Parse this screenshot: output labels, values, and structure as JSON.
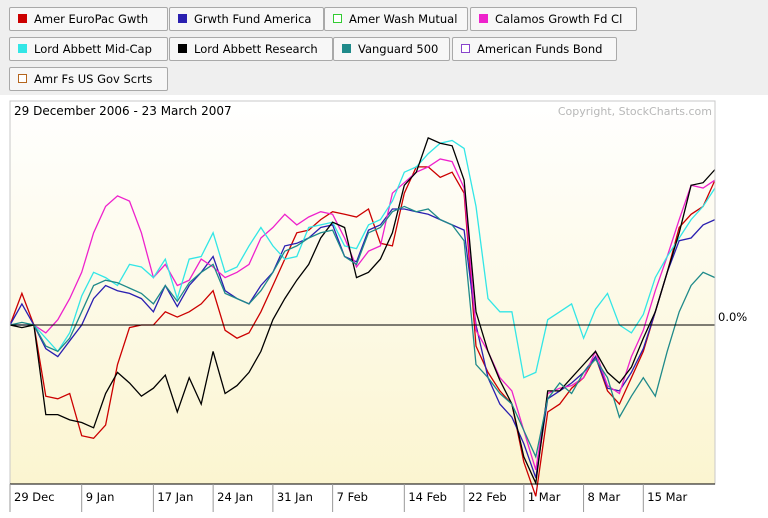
{
  "legend": [
    {
      "label": "Amer EuroPac Gwth",
      "color": "#cc0000",
      "filled": true
    },
    {
      "label": "Grwth Fund America",
      "color": "#2a1fb0",
      "filled": true
    },
    {
      "label": "Amer Wash Mutual",
      "color": "#33cc33",
      "filled": false
    },
    {
      "label": "Calamos Growth Fd Cl",
      "color": "#ee22cc",
      "filled": true
    },
    {
      "label": "Lord Abbett Mid-Cap",
      "color": "#33e6e6",
      "filled": true
    },
    {
      "label": "Lord Abbett Research",
      "color": "#000000",
      "filled": true
    },
    {
      "label": "Vanguard 500",
      "color": "#1f8a8a",
      "filled": true
    },
    {
      "label": "American Funds Bond",
      "color": "#8844cc",
      "filled": false
    },
    {
      "label": "Amr Fs US Gov Scrts",
      "color": "#b5651d",
      "filled": false
    }
  ],
  "chart_data": {
    "type": "line",
    "date_range_label": "29 December 2006 - 23 March 2007",
    "copyright": "Copyright, StockCharts.com",
    "zero_label": "0.0%",
    "x_tick_labels": [
      "29 Dec",
      "9 Jan",
      "17 Jan",
      "24 Jan",
      "31 Jan",
      "7 Feb",
      "14 Feb",
      "22 Feb",
      "1 Mar",
      "8 Mar",
      "15 Mar"
    ],
    "x_tick_index": [
      0,
      6,
      12,
      17,
      22,
      27,
      33,
      38,
      43,
      48,
      53
    ],
    "ylim": [
      -6.5,
      8.5
    ],
    "x_count": 60,
    "series": [
      {
        "name": "Amer EuroPac Gwth",
        "color": "#cc0000",
        "values": [
          0,
          1.2,
          0,
          -2.7,
          -2.8,
          -2.6,
          -4.2,
          -4.3,
          -3.8,
          -1.5,
          -0.1,
          0,
          0,
          0.5,
          0.3,
          0.5,
          0.8,
          1.3,
          -0.2,
          -0.5,
          -0.3,
          0.5,
          1.5,
          2.5,
          3.5,
          3.6,
          4.0,
          4.3,
          4.2,
          4.1,
          4.4,
          3.1,
          3.0,
          5.0,
          6.0,
          6.0,
          5.6,
          5.8,
          5.0,
          -0.8,
          -1.8,
          -2.5,
          -3.0,
          -5.2,
          -6.5,
          -3.3,
          -3.0,
          -2.4,
          -2.0,
          -1.2,
          -2.5,
          -3.0,
          -2.0,
          -1.0,
          0.5,
          2.0,
          3.7,
          4.2,
          4.5,
          5.5
        ]
      },
      {
        "name": "Grwth Fund America",
        "color": "#2a1fb0",
        "values": [
          0,
          0.8,
          0,
          -0.9,
          -1.2,
          -0.6,
          0.0,
          1.0,
          1.5,
          1.3,
          1.2,
          1.0,
          0.5,
          1.5,
          0.7,
          1.5,
          2.0,
          2.6,
          1.3,
          1.0,
          0.8,
          1.5,
          2.0,
          3.0,
          3.1,
          3.3,
          3.7,
          3.8,
          2.6,
          2.4,
          3.6,
          3.8,
          4.4,
          4.4,
          4.3,
          4.2,
          4.0,
          3.8,
          3.6,
          0.0,
          -2.0,
          -3.0,
          -3.5,
          -4.5,
          -5.8,
          -2.8,
          -2.5,
          -2.2,
          -1.8,
          -1.2,
          -2.4,
          -2.5,
          -1.8,
          -0.9,
          0.5,
          2.0,
          3.2,
          3.3,
          3.8,
          4.0
        ]
      },
      {
        "name": "Calamos Growth Fd Cl",
        "color": "#ee22cc",
        "values": [
          0,
          0.0,
          0,
          -0.3,
          0.2,
          1.0,
          2.0,
          3.5,
          4.5,
          4.9,
          4.7,
          3.5,
          1.8,
          2.3,
          1.5,
          1.7,
          2.5,
          2.2,
          1.8,
          2.0,
          2.3,
          3.3,
          3.7,
          4.2,
          3.8,
          4.1,
          4.3,
          4.2,
          3.3,
          2.2,
          2.8,
          3.0,
          5.0,
          5.4,
          5.8,
          6.0,
          6.3,
          6.2,
          5.2,
          -0.2,
          -1.0,
          -2.0,
          -2.5,
          -4.0,
          -5.5,
          -2.6,
          -2.4,
          -2.3,
          -2.0,
          -1.0,
          -2.3,
          -2.6,
          -1.2,
          -0.2,
          1.3,
          2.6,
          4.0,
          5.3,
          5.2,
          5.5
        ]
      },
      {
        "name": "Lord Abbett Mid-Cap",
        "color": "#33e6e6",
        "values": [
          0,
          0.0,
          0,
          -0.5,
          -1.0,
          -0.3,
          1.1,
          2.0,
          1.8,
          1.5,
          2.3,
          2.2,
          1.8,
          2.5,
          1.0,
          2.5,
          2.6,
          3.5,
          2.0,
          2.2,
          3.0,
          3.7,
          3.0,
          2.5,
          2.6,
          3.7,
          3.8,
          3.9,
          3.0,
          2.9,
          3.8,
          4.0,
          4.7,
          5.8,
          6.0,
          6.5,
          6.9,
          7.0,
          6.7,
          4.5,
          1.0,
          0.5,
          0.5,
          -2.0,
          -1.8,
          0.2,
          0.5,
          0.8,
          -0.5,
          0.6,
          1.2,
          0.0,
          -0.3,
          0.4,
          1.8,
          2.6,
          3.3,
          4.0,
          4.5,
          5.2
        ]
      },
      {
        "name": "Lord Abbett Research",
        "color": "#000000",
        "values": [
          0,
          -0.1,
          0,
          -3.4,
          -3.4,
          -3.6,
          -3.7,
          -3.9,
          -2.6,
          -1.8,
          -2.2,
          -2.7,
          -2.4,
          -1.9,
          -3.3,
          -2.0,
          -3.0,
          -1.0,
          -2.6,
          -2.3,
          -1.8,
          -1.0,
          0.2,
          1.0,
          1.7,
          2.3,
          3.3,
          3.9,
          3.7,
          1.8,
          2.0,
          2.5,
          3.5,
          5.3,
          5.8,
          7.1,
          6.9,
          6.8,
          5.5,
          0.5,
          -1.0,
          -2.1,
          -3.0,
          -5.0,
          -6.0,
          -2.5,
          -2.5,
          -2.0,
          -1.5,
          -1.0,
          -1.8,
          -2.2,
          -1.6,
          -0.5,
          0.5,
          2.0,
          3.5,
          5.3,
          5.4,
          5.9
        ]
      },
      {
        "name": "Vanguard 500",
        "color": "#1f8a8a",
        "values": [
          0,
          0.1,
          0,
          -0.8,
          -1.0,
          -0.5,
          0.5,
          1.5,
          1.7,
          1.6,
          1.4,
          1.2,
          0.8,
          1.5,
          0.9,
          1.6,
          2.0,
          2.3,
          1.2,
          1.0,
          0.8,
          1.3,
          2.0,
          2.8,
          3.0,
          3.3,
          3.5,
          3.6,
          2.6,
          2.3,
          3.5,
          3.7,
          4.3,
          4.5,
          4.3,
          4.4,
          4.0,
          3.8,
          3.2,
          -1.5,
          -2.0,
          -2.6,
          -3.0,
          -4.0,
          -5.0,
          -2.8,
          -2.2,
          -2.6,
          -1.8,
          -1.3,
          -2.0,
          -3.5,
          -2.7,
          -2.0,
          -2.7,
          -1.0,
          0.5,
          1.5,
          2.0,
          1.8
        ]
      }
    ]
  }
}
